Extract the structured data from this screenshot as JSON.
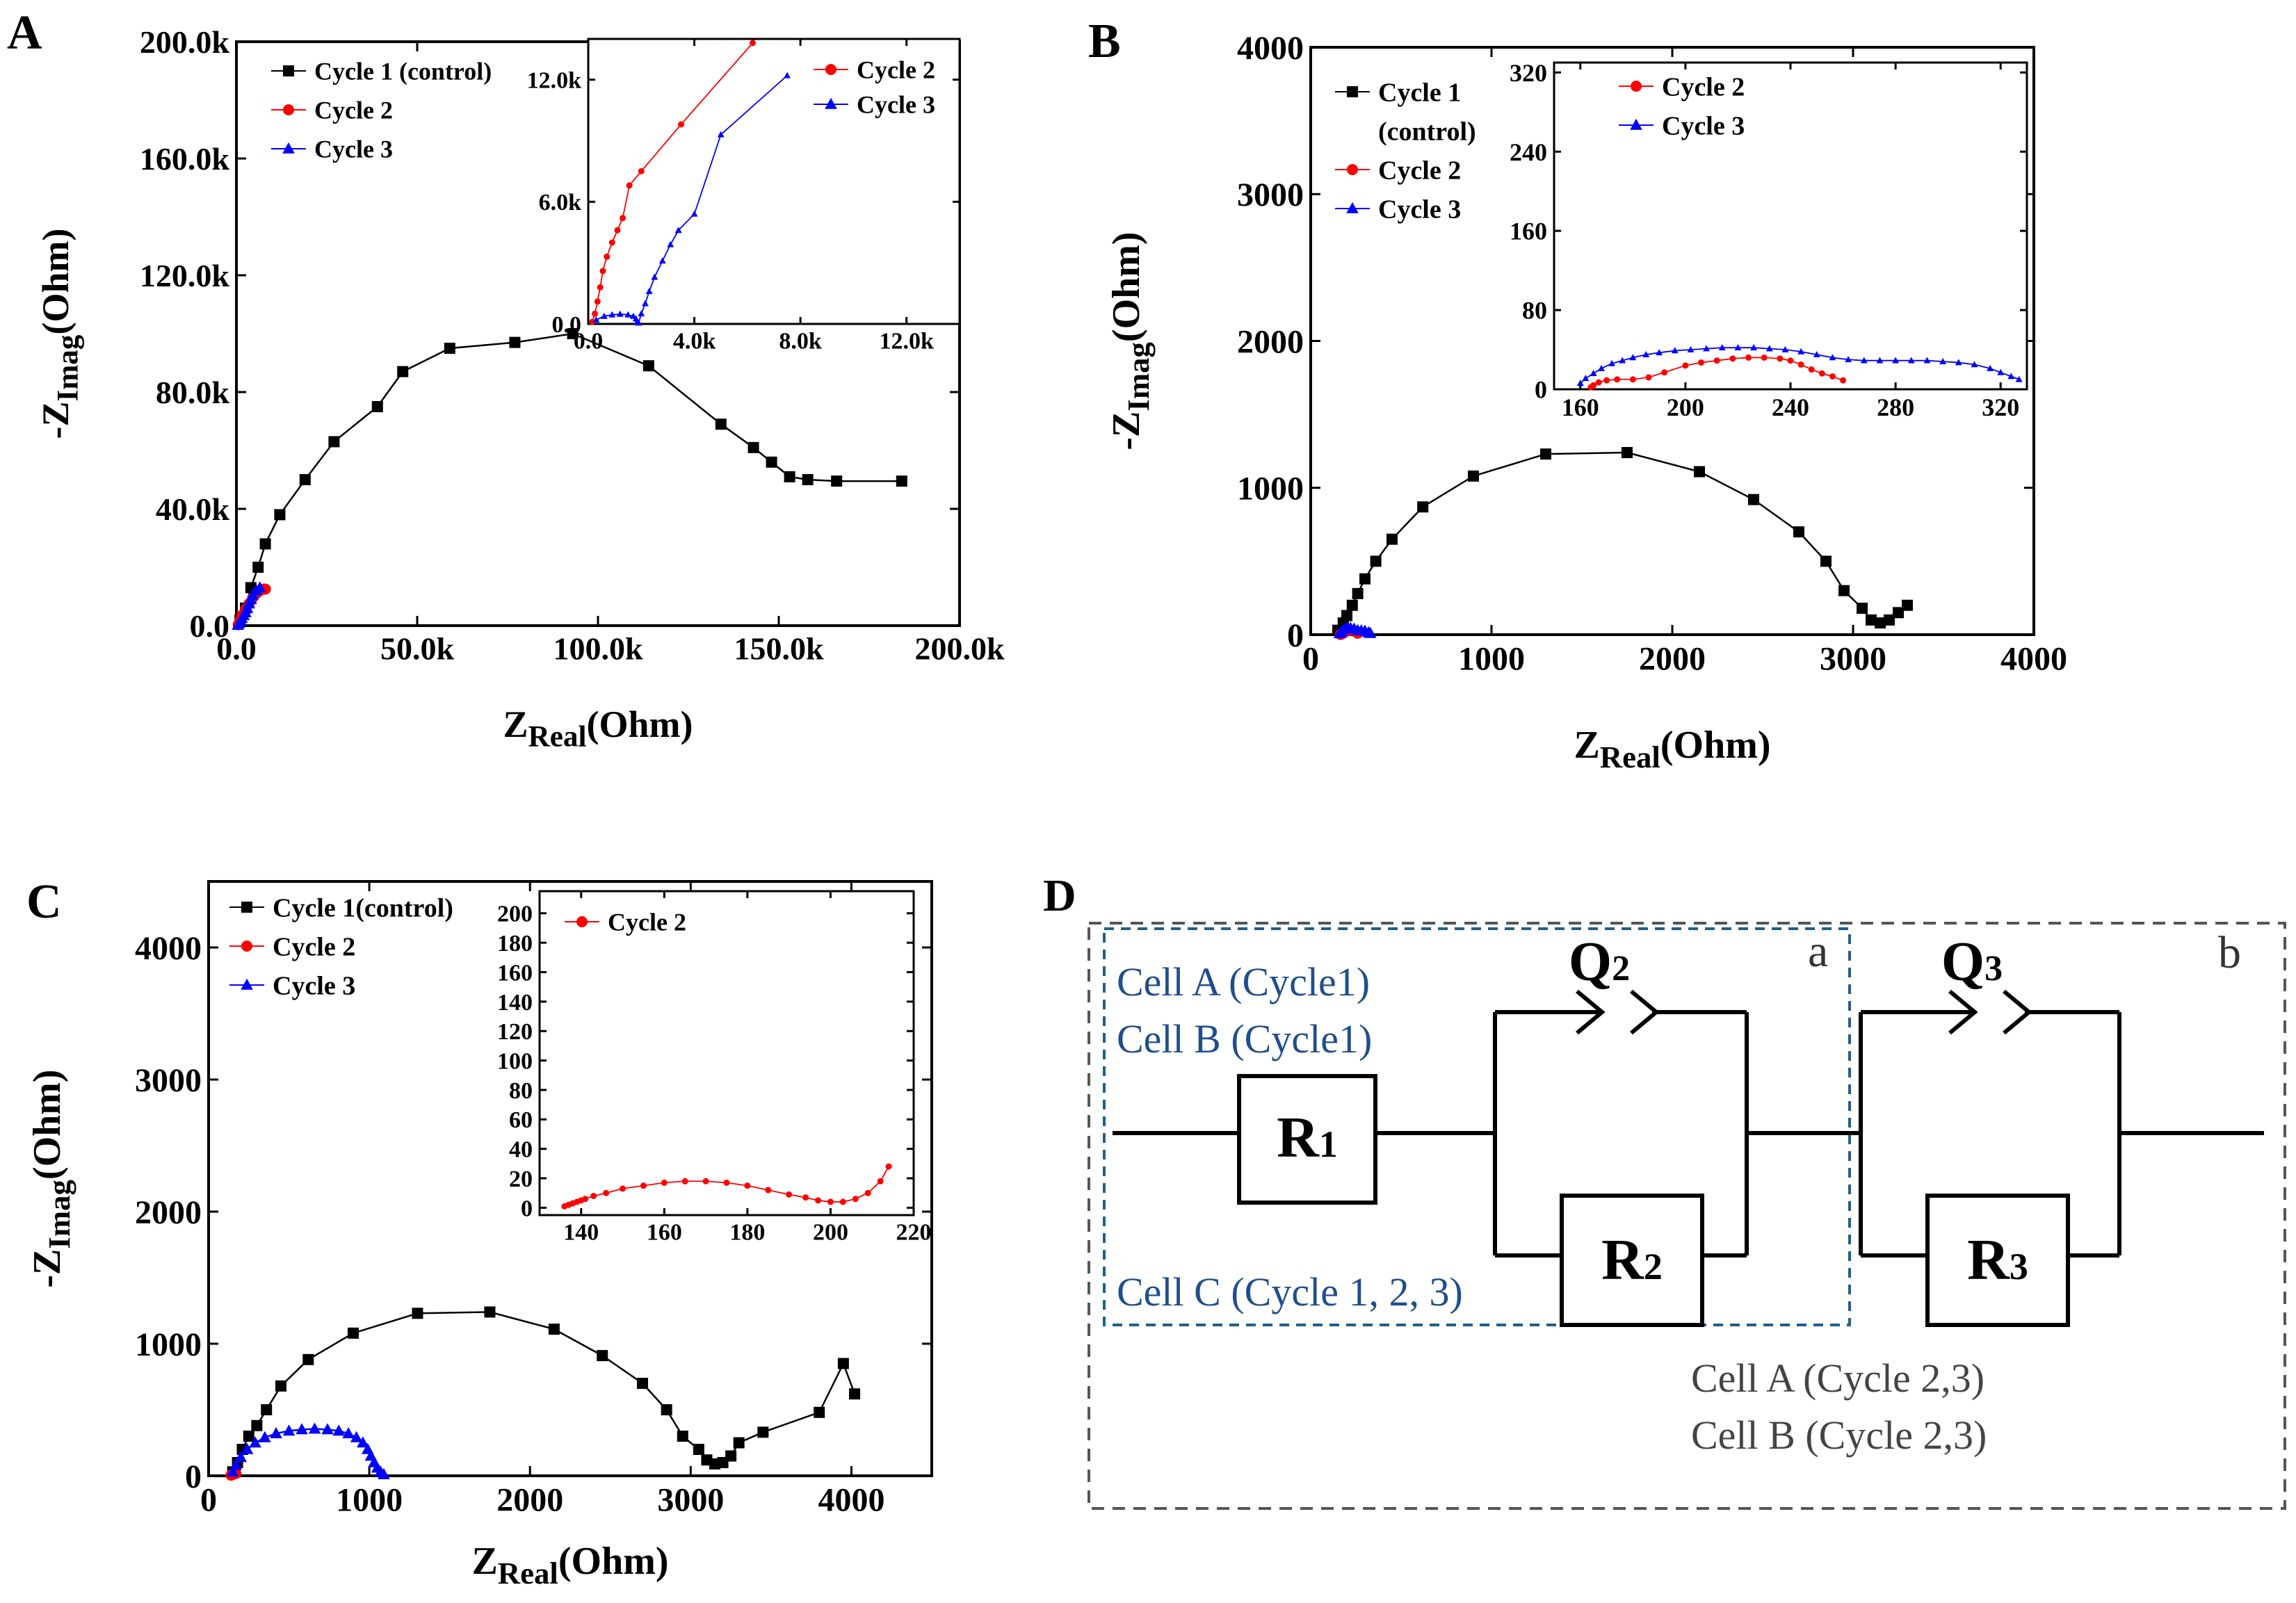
{
  "colors": {
    "cycle1": "#000000",
    "cycle2": "#ff0000",
    "cycle3": "#0000ff",
    "cell_label_blue": "#1f4e8c",
    "box_a": "#1f5f8b",
    "box_b": "#555555",
    "cell_label_gray": "#444444"
  },
  "chart_data": [
    {
      "id": "A",
      "panel_label": "A",
      "type": "scatter",
      "xlabel": "Z",
      "xlabel_sub": "Real",
      "xlabel_unit": "(Ohm)",
      "ylabel": "-Z",
      "ylabel_sub": "Imag",
      "ylabel_unit": "(Ohm)",
      "xlim": [
        0,
        200000
      ],
      "ylim": [
        0,
        200000
      ],
      "xticks": [
        0,
        50000,
        100000,
        150000,
        200000
      ],
      "xtick_labels": [
        "0.0",
        "50.0k",
        "100.0k",
        "150.0k",
        "200.0k"
      ],
      "yticks": [
        0,
        40000,
        80000,
        120000,
        160000,
        200000
      ],
      "ytick_labels": [
        "0.0",
        "40.0k",
        "80.0k",
        "120.0k",
        "160.0k",
        "200.0k"
      ],
      "legend_position": "top-left",
      "series": [
        {
          "name": "Cycle 1 (control)",
          "color": "#000000",
          "marker": "square",
          "x": [
            1000,
            2500,
            4000,
            6000,
            8000,
            12000,
            19000,
            27000,
            39000,
            46000,
            59000,
            77000,
            93000,
            114000,
            134000,
            143000,
            148000,
            153000,
            158000,
            166000,
            184000
          ],
          "y": [
            2000,
            6000,
            13000,
            20000,
            28000,
            38000,
            50000,
            63000,
            75000,
            87000,
            95000,
            97000,
            100000,
            89000,
            69000,
            61000,
            56000,
            51000,
            50000,
            49500,
            49500
          ]
        },
        {
          "name": "Cycle 2",
          "color": "#ff0000",
          "marker": "circle",
          "x": [
            500,
            900,
            1500,
            2500,
            3500,
            4500,
            5500,
            6500,
            7500,
            8000
          ],
          "y": [
            300,
            1500,
            3500,
            5500,
            7500,
            9500,
            11000,
            12000,
            12500,
            12500
          ]
        },
        {
          "name": "Cycle 3",
          "color": "#0000ff",
          "marker": "triangle",
          "x": [
            400,
            700,
            1100,
            1500,
            2000,
            2500,
            3000,
            3500,
            4000,
            4500,
            5500,
            6500
          ],
          "y": [
            200,
            700,
            1500,
            2500,
            3500,
            4500,
            6000,
            7500,
            9000,
            10500,
            12000,
            13000
          ]
        }
      ],
      "inset": {
        "xlim": [
          0,
          14000
        ],
        "ylim": [
          0,
          14000
        ],
        "xticks": [
          0,
          4000,
          8000,
          12000
        ],
        "xtick_labels": [
          "0.0",
          "4.0k",
          "8.0k",
          "12.0k"
        ],
        "yticks": [
          0,
          6000,
          12000
        ],
        "ytick_labels": [
          "0.0",
          "6.0k",
          "12.0k"
        ],
        "legend_position": "top-right",
        "series": [
          {
            "name": "Cycle 2",
            "color": "#ff0000",
            "marker": "circle",
            "x": [
              150,
              250,
              350,
              450,
              550,
              700,
              900,
              1100,
              1300,
              1550,
              2000,
              3500,
              6200
            ],
            "y": [
              100,
              500,
              1100,
              1800,
              2600,
              3300,
              4000,
              4600,
              5200,
              6800,
              7500,
              9800,
              13800
            ]
          },
          {
            "name": "Cycle 3",
            "color": "#0000ff",
            "marker": "triangle",
            "x": [
              300,
              600,
              900,
              1200,
              1500,
              1700,
              1800,
              1850,
              1900,
              2000,
              2150,
              2300,
              2500,
              2800,
              3100,
              3400,
              4000,
              5000,
              7500
            ],
            "y": [
              200,
              380,
              450,
              480,
              450,
              380,
              250,
              100,
              50,
              500,
              1000,
              1600,
              2300,
              3100,
              3900,
              4600,
              5400,
              9300,
              12200
            ]
          }
        ]
      }
    },
    {
      "id": "B",
      "panel_label": "B",
      "type": "scatter",
      "xlabel": "Z",
      "xlabel_sub": "Real",
      "xlabel_unit": "(Ohm)",
      "ylabel": "-Z",
      "ylabel_sub": "Imag",
      "ylabel_unit": "(Ohm)",
      "xlim": [
        0,
        4000
      ],
      "ylim": [
        0,
        4000
      ],
      "xticks": [
        0,
        1000,
        2000,
        3000,
        4000
      ],
      "xtick_labels": [
        "0",
        "1000",
        "2000",
        "3000",
        "4000"
      ],
      "yticks": [
        0,
        1000,
        2000,
        3000,
        4000
      ],
      "ytick_labels": [
        "0",
        "1000",
        "2000",
        "3000",
        "4000"
      ],
      "legend_position": "top-left",
      "legend_labels": [
        "Cycle 1",
        "(control)",
        "Cycle 2",
        "Cycle 3"
      ],
      "series": [
        {
          "name": "Cycle 1 (control)",
          "color": "#000000",
          "marker": "square",
          "x": [
            150,
            180,
            200,
            230,
            260,
            300,
            360,
            450,
            620,
            900,
            1300,
            1750,
            2150,
            2450,
            2700,
            2850,
            2950,
            3050,
            3100,
            3150,
            3200,
            3250,
            3300
          ],
          "y": [
            30,
            80,
            130,
            200,
            280,
            380,
            500,
            650,
            870,
            1080,
            1230,
            1240,
            1110,
            920,
            700,
            500,
            300,
            180,
            100,
            80,
            100,
            150,
            200
          ]
        },
        {
          "name": "Cycle 2",
          "color": "#ff0000",
          "marker": "circle",
          "x": [
            165,
            180,
            200,
            220,
            240,
            260
          ],
          "y": [
            2,
            10,
            25,
            30,
            25,
            10
          ]
        },
        {
          "name": "Cycle 3",
          "color": "#0000ff",
          "marker": "triangle",
          "x": [
            160,
            170,
            185,
            200,
            220,
            240,
            260,
            280,
            300,
            320,
            330
          ],
          "y": [
            8,
            20,
            38,
            45,
            45,
            40,
            30,
            28,
            25,
            15,
            10
          ]
        }
      ],
      "inset": {
        "xlim": [
          150,
          330
        ],
        "ylim": [
          0,
          330
        ],
        "xticks": [
          160,
          200,
          240,
          280,
          320
        ],
        "xtick_labels": [
          "160",
          "200",
          "240",
          "280",
          "320"
        ],
        "yticks": [
          0,
          80,
          160,
          240,
          320
        ],
        "ytick_labels": [
          "0",
          "80",
          "160",
          "240",
          "320"
        ],
        "legend_position": "top-left",
        "series": [
          {
            "name": "Cycle 2",
            "color": "#ff0000",
            "marker": "circle",
            "x": [
              164,
              165,
              167,
              170,
              174,
              180,
              186,
              192,
              200,
              206,
              212,
              218,
              224,
              230,
              236,
              240,
              244,
              248,
              252,
              256,
              260
            ],
            "y": [
              2,
              4,
              7,
              9,
              10,
              10,
              12,
              17,
              24,
              27,
              29,
              31,
              32,
              32,
              31,
              29,
              25,
              20,
              16,
              13,
              9
            ]
          },
          {
            "name": "Cycle 3",
            "color": "#0000ff",
            "marker": "triangle",
            "x": [
              160,
              162,
              165,
              168,
              172,
              176,
              180,
              185,
              190,
              196,
              202,
              208,
              214,
              220,
              226,
              232,
              238,
              244,
              250,
              256,
              262,
              268,
              274,
              280,
              286,
              292,
              298,
              304,
              310,
              316,
              320,
              324,
              327
            ],
            "y": [
              6,
              11,
              16,
              21,
              26,
              29,
              32,
              35,
              37,
              39,
              40,
              41,
              42,
              42,
              42,
              41,
              40,
              38,
              35,
              32,
              30,
              29,
              29,
              29,
              29,
              29,
              28,
              27,
              25,
              21,
              17,
              13,
              10
            ]
          }
        ]
      }
    },
    {
      "id": "C",
      "panel_label": "C",
      "type": "scatter",
      "xlabel": "Z",
      "xlabel_sub": "Real",
      "xlabel_unit": "(Ohm)",
      "ylabel": "-Z",
      "ylabel_sub": "Imag",
      "ylabel_unit": "(Ohm)",
      "xlim": [
        0,
        4500
      ],
      "ylim": [
        0,
        4500
      ],
      "xticks": [
        0,
        1000,
        2000,
        3000,
        4000
      ],
      "xtick_labels": [
        "0",
        "1000",
        "2000",
        "3000",
        "4000"
      ],
      "yticks": [
        0,
        1000,
        2000,
        3000,
        4000
      ],
      "ytick_labels": [
        "0",
        "1000",
        "2000",
        "3000",
        "4000"
      ],
      "legend_position": "top-left",
      "series": [
        {
          "name": "Cycle 1(control)",
          "color": "#000000",
          "marker": "square",
          "x": [
            150,
            180,
            210,
            250,
            300,
            360,
            450,
            620,
            900,
            1300,
            1750,
            2150,
            2450,
            2700,
            2850,
            2950,
            3050,
            3100,
            3150,
            3200,
            3250,
            3300,
            3450,
            3800,
            3950,
            4020
          ],
          "y": [
            30,
            100,
            200,
            300,
            380,
            500,
            680,
            880,
            1080,
            1230,
            1240,
            1110,
            910,
            700,
            500,
            300,
            200,
            120,
            90,
            100,
            150,
            250,
            330,
            480,
            850,
            620
          ]
        },
        {
          "name": "Cycle 2",
          "color": "#ff0000",
          "marker": "circle",
          "x": [
            140,
            150,
            160,
            170
          ],
          "y": [
            5,
            10,
            15,
            18
          ]
        },
        {
          "name": "Cycle 3",
          "color": "#0000ff",
          "marker": "triangle",
          "x": [
            150,
            170,
            200,
            240,
            290,
            350,
            420,
            500,
            580,
            660,
            740,
            810,
            870,
            920,
            960,
            990,
            1010,
            1030,
            1050,
            1070,
            1090
          ],
          "y": [
            30,
            80,
            140,
            200,
            250,
            290,
            320,
            340,
            350,
            355,
            350,
            340,
            320,
            290,
            250,
            200,
            150,
            100,
            60,
            30,
            10
          ]
        }
      ],
      "inset": {
        "xlim": [
          130,
          220
        ],
        "ylim": [
          -5,
          215
        ],
        "xticks": [
          140,
          160,
          180,
          200,
          220
        ],
        "xtick_labels": [
          "140",
          "160",
          "180",
          "200",
          "220"
        ],
        "yticks": [
          0,
          20,
          40,
          60,
          80,
          100,
          120,
          140,
          160,
          180,
          200
        ],
        "ytick_labels": [
          "0",
          "20",
          "40",
          "60",
          "80",
          "100",
          "120",
          "140",
          "160",
          "180",
          "200"
        ],
        "legend_position": "top-left",
        "series": [
          {
            "name": "Cycle 2",
            "color": "#ff0000",
            "marker": "circle",
            "x": [
              136,
              137,
              138,
              139,
              140,
              141,
              143,
              146,
              150,
              155,
              160,
              165,
              170,
              175,
              180,
              185,
              190,
              194,
              197,
              200,
              203,
              206,
              209,
              212,
              214
            ],
            "y": [
              1,
              2,
              3,
              4,
              5,
              6,
              8,
              10,
              13,
              15,
              17,
              18,
              18,
              17,
              15,
              12,
              9,
              7,
              5,
              4,
              4,
              6,
              10,
              18,
              28
            ]
          }
        ]
      }
    }
  ],
  "circuit": {
    "panel_label": "D",
    "box_a_label": "a",
    "box_b_label": "b",
    "cell_a_cycle1": "Cell A (Cycle1)",
    "cell_b_cycle1": "Cell B (Cycle1)",
    "cell_c_cycles": "Cell C (Cycle 1, 2, 3)",
    "cell_a_cycles23": "Cell A (Cycle 2,3)",
    "cell_b_cycles23": "Cell B (Cycle 2,3)",
    "r1": {
      "main": "R",
      "sub": "1"
    },
    "r2": {
      "main": "R",
      "sub": "2"
    },
    "r3": {
      "main": "R",
      "sub": "3"
    },
    "q2": {
      "main": "Q",
      "sub": "2"
    },
    "q3": {
      "main": "Q",
      "sub": "3"
    }
  }
}
